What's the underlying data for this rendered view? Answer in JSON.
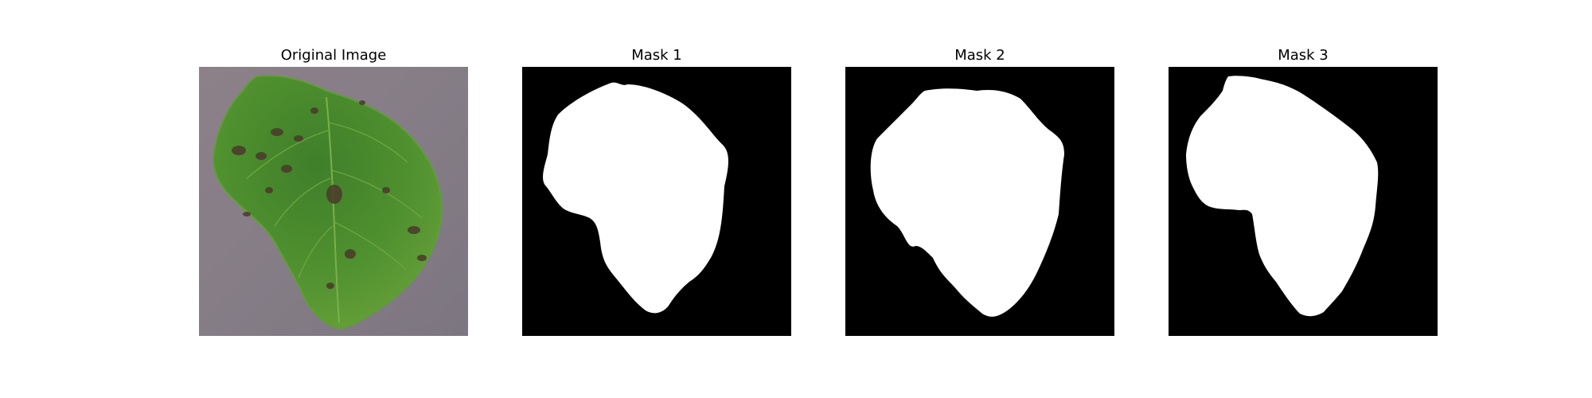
{
  "figure": {
    "panels": [
      {
        "title": "Original Image"
      },
      {
        "title": "Mask 1"
      },
      {
        "title": "Mask 2"
      },
      {
        "title": "Mask 3"
      }
    ]
  },
  "colors": {
    "background": "#ffffff",
    "mask_background": "#000000",
    "mask_foreground": "#ffffff",
    "leaf_green": "#4f8d2f",
    "leaf_dark": "#2f5f24",
    "leaf_spot": "#4a3a2a",
    "ground": "#8a8188"
  }
}
